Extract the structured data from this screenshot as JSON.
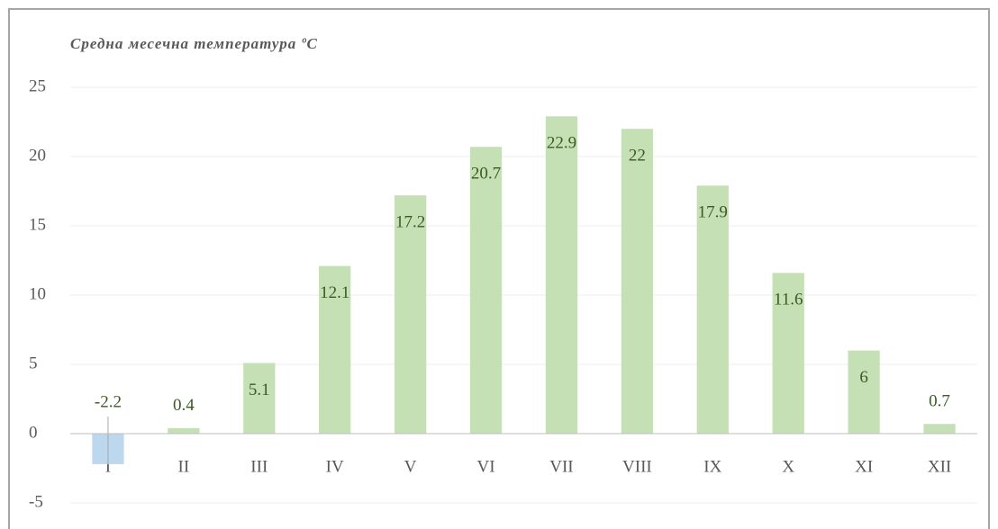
{
  "chart_data": {
    "type": "bar",
    "title": "Средна месечна температура ºC",
    "categories": [
      "I",
      "II",
      "III",
      "IV",
      "V",
      "VI",
      "VII",
      "VIII",
      "IX",
      "X",
      "XI",
      "XII"
    ],
    "values": [
      -2.2,
      0.4,
      5.1,
      12.1,
      17.2,
      20.7,
      22.9,
      22,
      17.9,
      11.6,
      6,
      0.7
    ],
    "color": "#c5e0b4",
    "negative_color": "#bdd7ee",
    "ylim": [
      -5,
      25
    ],
    "yticks": [
      -5,
      0,
      5,
      10,
      15,
      20,
      25
    ],
    "grid": true
  }
}
